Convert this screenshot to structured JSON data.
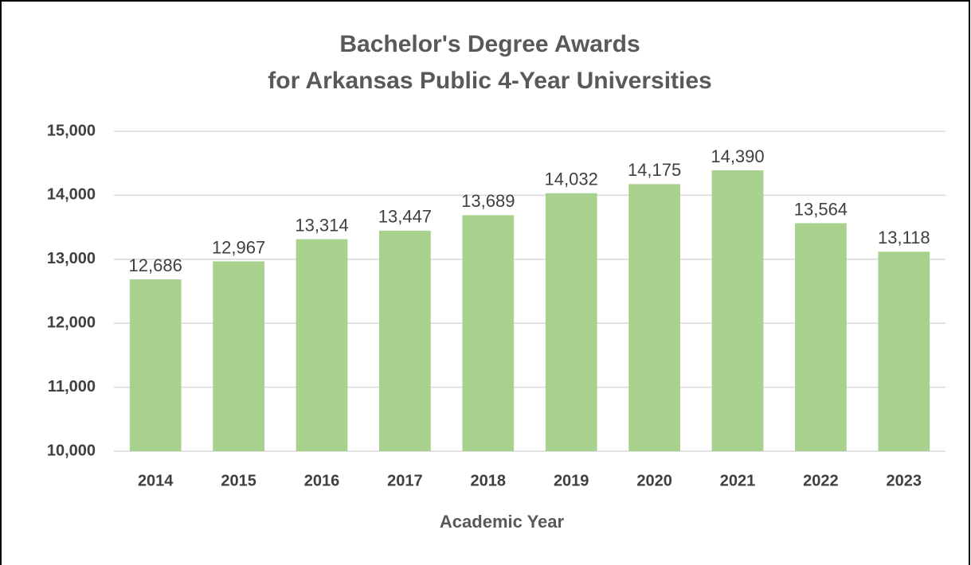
{
  "chart_data": {
    "type": "bar",
    "title": [
      "Bachelor's Degree Awards",
      "for Arkansas Public 4-Year Universities"
    ],
    "x_label": "Academic Year",
    "categories": [
      "2014",
      "2015",
      "2016",
      "2017",
      "2018",
      "2019",
      "2020",
      "2021",
      "2022",
      "2023"
    ],
    "values": [
      12686,
      12967,
      13314,
      13447,
      13689,
      14032,
      14175,
      14390,
      13564,
      13118
    ],
    "value_labels": [
      "12,686",
      "12,967",
      "13,314",
      "13,447",
      "13,689",
      "14,032",
      "14,175",
      "14,390",
      "13,564",
      "13,118"
    ],
    "color": "#a9d18e",
    "ylim": [
      10000,
      15000
    ],
    "yticks": [
      {
        "value": 10000,
        "label": "10,000"
      },
      {
        "value": 11000,
        "label": "11,000"
      },
      {
        "value": 12000,
        "label": "12,000"
      },
      {
        "value": 13000,
        "label": "13,000"
      },
      {
        "value": 14000,
        "label": "14,000"
      },
      {
        "value": 15000,
        "label": "15,000"
      }
    ],
    "grid": true
  }
}
